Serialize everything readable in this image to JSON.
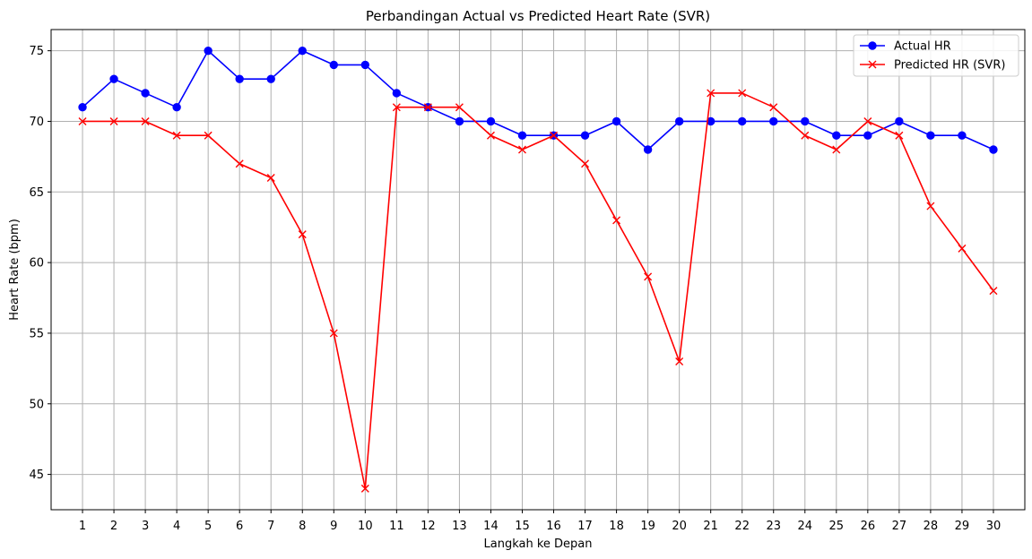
{
  "chart_data": {
    "type": "line",
    "title": "Perbandingan Actual vs Predicted Heart Rate (SVR)",
    "xlabel": "Langkah ke Depan",
    "ylabel": "Heart Rate (bpm)",
    "x": [
      1,
      2,
      3,
      4,
      5,
      6,
      7,
      8,
      9,
      10,
      11,
      12,
      13,
      14,
      15,
      16,
      17,
      18,
      19,
      20,
      21,
      22,
      23,
      24,
      25,
      26,
      27,
      28,
      29,
      30
    ],
    "x_ticks": [
      "1",
      "2",
      "3",
      "4",
      "5",
      "6",
      "7",
      "8",
      "9",
      "10",
      "11",
      "12",
      "13",
      "14",
      "15",
      "16",
      "17",
      "18",
      "19",
      "20",
      "21",
      "22",
      "23",
      "24",
      "25",
      "26",
      "27",
      "28",
      "29",
      "30"
    ],
    "y_ticks": [
      "45",
      "50",
      "55",
      "60",
      "65",
      "70",
      "75"
    ],
    "xlim": [
      0.0,
      31.0
    ],
    "ylim": [
      42.5,
      76.5
    ],
    "grid": true,
    "legend_position": "top-right",
    "series": [
      {
        "name": "Actual HR",
        "color": "#0000ff",
        "marker": "circle",
        "values": [
          71,
          73,
          72,
          71,
          75,
          73,
          73,
          75,
          74,
          74,
          72,
          71,
          70,
          70,
          69,
          69,
          69,
          70,
          68,
          70,
          70,
          70,
          70,
          70,
          69,
          69,
          70,
          69,
          69,
          68
        ]
      },
      {
        "name": "Predicted HR (SVR)",
        "color": "#ff0000",
        "marker": "x",
        "values": [
          70,
          70,
          70,
          69,
          69,
          67,
          66,
          62,
          55,
          44,
          71,
          71,
          71,
          69,
          68,
          69,
          67,
          63,
          59,
          53,
          72,
          72,
          71,
          69,
          68,
          70,
          69,
          64,
          61,
          58
        ]
      }
    ]
  }
}
